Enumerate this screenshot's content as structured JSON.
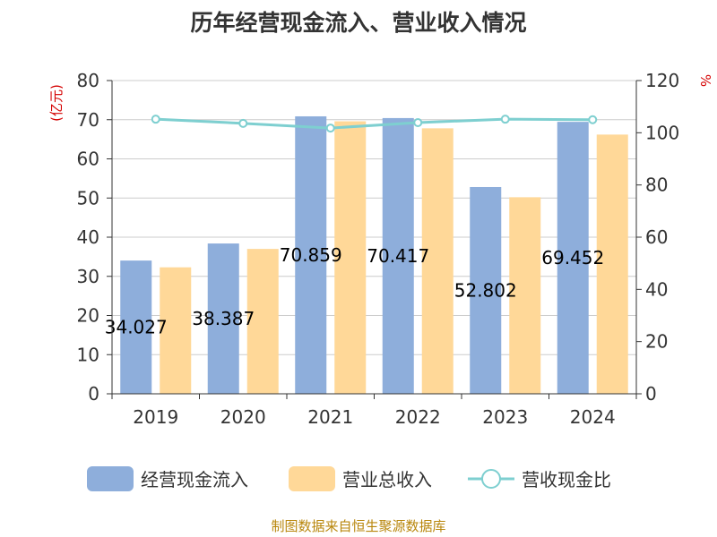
{
  "chart_data": {
    "type": "bar",
    "title": "历年经营现金流入、营业收入情况",
    "categories": [
      "2019",
      "2020",
      "2021",
      "2022",
      "2023",
      "2024"
    ],
    "series": [
      {
        "name": "经营现金流入",
        "type": "bar",
        "axis": "left",
        "color": "#8eaedb",
        "values": [
          34.027,
          38.387,
          70.859,
          70.417,
          52.802,
          69.452
        ],
        "labels": [
          "34.027",
          "38.387",
          "70.859",
          "70.417",
          "52.802",
          "69.452"
        ]
      },
      {
        "name": "营业总收入",
        "type": "bar",
        "axis": "left",
        "color": "#ffd898",
        "values": [
          32.3,
          37.0,
          69.6,
          67.8,
          50.2,
          66.2
        ]
      },
      {
        "name": "营收现金比",
        "type": "line",
        "axis": "right",
        "color": "#7ecfd0",
        "values": [
          105.2,
          103.6,
          101.8,
          103.9,
          105.2,
          105.0
        ]
      }
    ],
    "y_left": {
      "label": "(亿元)",
      "min": 0,
      "max": 80,
      "ticks": [
        0,
        10,
        20,
        30,
        40,
        50,
        60,
        70,
        80
      ]
    },
    "y_right": {
      "label": "%",
      "min": 0,
      "max": 120,
      "ticks": [
        0,
        20,
        40,
        60,
        80,
        100,
        120
      ]
    },
    "grid": true,
    "legend": "bottom"
  },
  "source": "制图数据来自恒生聚源数据库"
}
